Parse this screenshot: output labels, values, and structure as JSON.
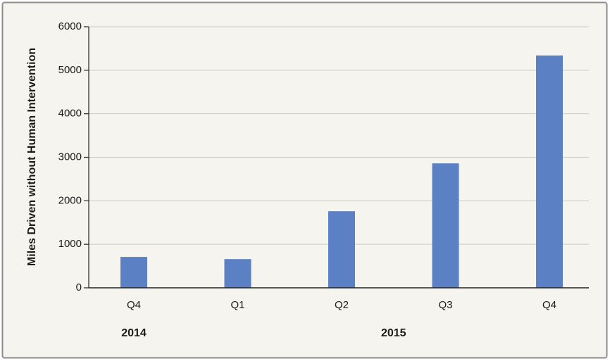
{
  "chart_data": {
    "type": "bar",
    "y_label": "Miles Driven without Human Intervention",
    "categories": [
      "Q4",
      "Q1",
      "Q2",
      "Q3",
      "Q4"
    ],
    "group_labels": [
      "2014",
      "2015"
    ],
    "values": [
      710,
      660,
      1760,
      2860,
      5340
    ],
    "color": "#5b80c4",
    "ylim": [
      0,
      6000
    ],
    "yticks": [
      0,
      1000,
      2000,
      3000,
      4000,
      5000,
      6000
    ],
    "grid": true
  }
}
